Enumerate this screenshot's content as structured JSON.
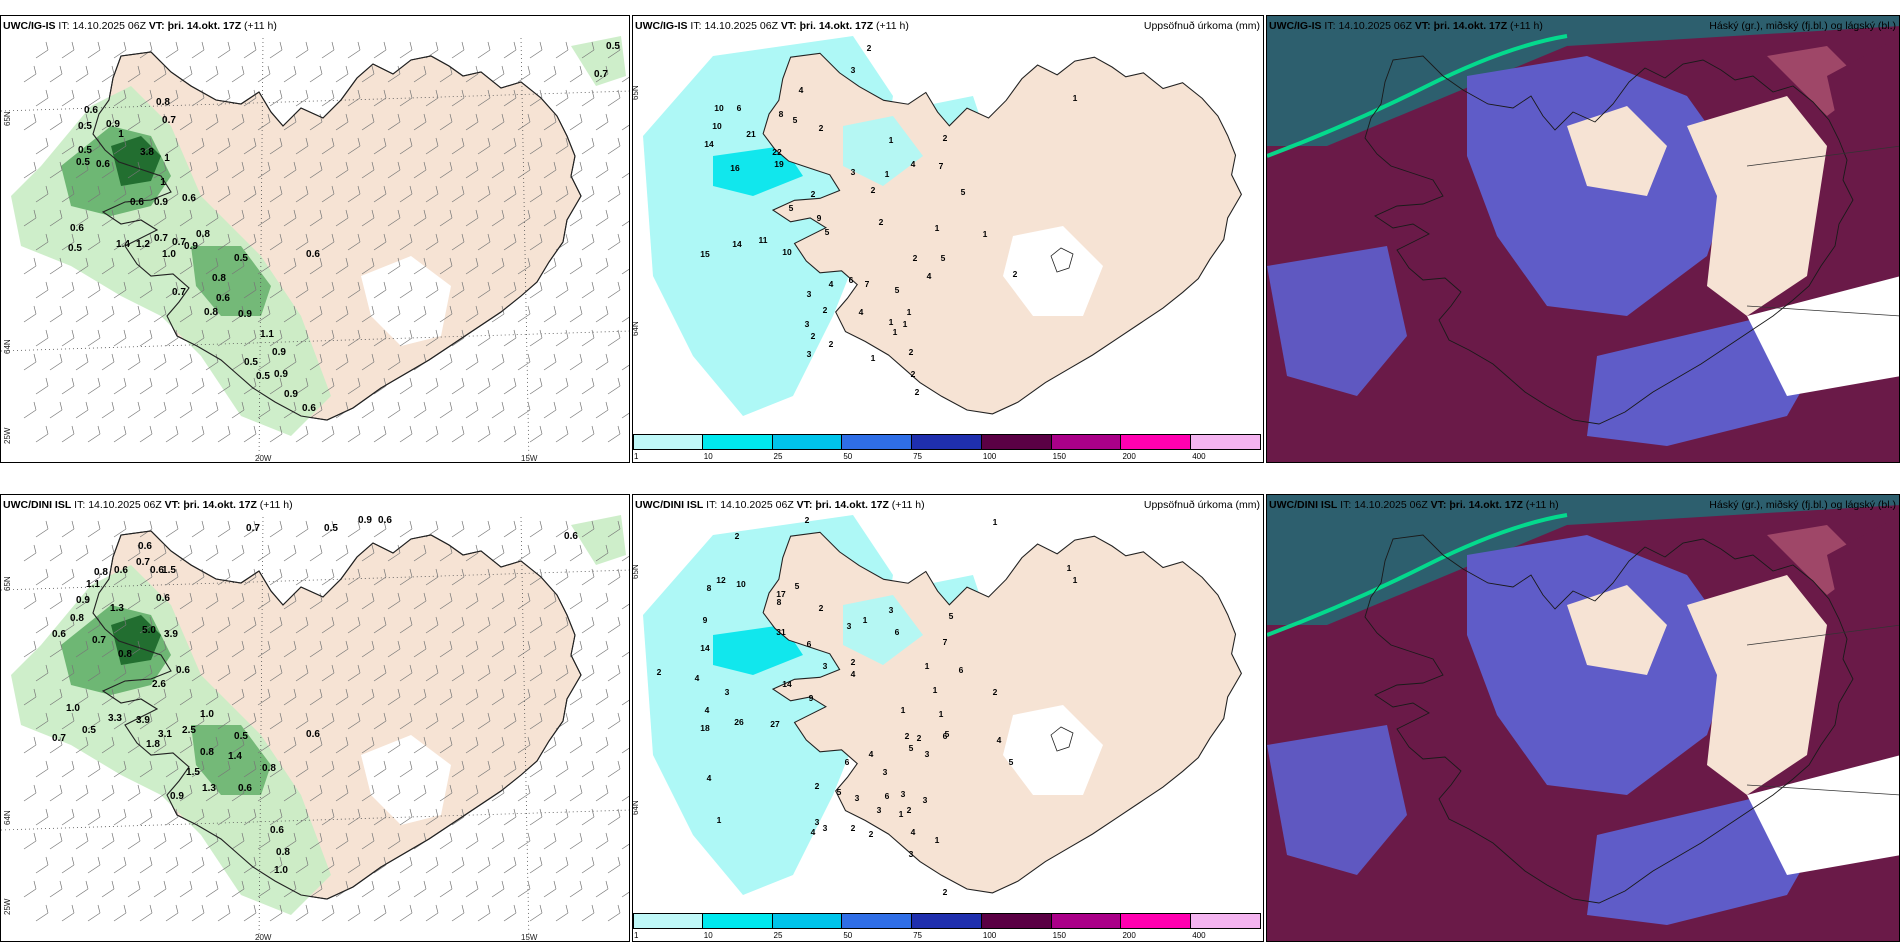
{
  "panels": [
    {
      "id": "p1",
      "model": "UWC/IG-IS",
      "it_label": "IT:",
      "it": "14.10.2025 06Z",
      "vt_label": "VT:",
      "vt": "þri. 14.okt. 17Z",
      "lead": "(+11 h)",
      "right_title": "",
      "lat_labels": [
        "65N",
        "64N",
        "25W"
      ],
      "lon_labels": [
        "20W",
        "15W"
      ],
      "values": [
        [
          "0.5",
          612,
          44
        ],
        [
          "0.7",
          600,
          72
        ],
        [
          "0.8",
          162,
          100
        ],
        [
          "0.6",
          90,
          108
        ],
        [
          "0.7",
          168,
          118
        ],
        [
          "0.5",
          84,
          124
        ],
        [
          "0.9",
          112,
          122
        ],
        [
          "1",
          120,
          132
        ],
        [
          "0.5",
          84,
          148
        ],
        [
          "3.8",
          146,
          150
        ],
        [
          "0.5",
          82,
          160
        ],
        [
          "0.6",
          102,
          162
        ],
        [
          "1",
          166,
          156
        ],
        [
          "1",
          162,
          180
        ],
        [
          "0.6",
          136,
          200
        ],
        [
          "0.9",
          160,
          200
        ],
        [
          "0.6",
          188,
          196
        ],
        [
          "0.6",
          76,
          226
        ],
        [
          "0.8",
          202,
          232
        ],
        [
          "0.7",
          160,
          236
        ],
        [
          "0.7",
          178,
          240
        ],
        [
          "0.9",
          190,
          244
        ],
        [
          "1.4",
          122,
          242
        ],
        [
          "1.2",
          142,
          242
        ],
        [
          "1.0",
          168,
          252
        ],
        [
          "0.5",
          74,
          246
        ],
        [
          "0.5",
          240,
          256
        ],
        [
          "0.6",
          312,
          252
        ],
        [
          "0.7",
          178,
          290
        ],
        [
          "0.8",
          218,
          276
        ],
        [
          "0.6",
          222,
          296
        ],
        [
          "0.8",
          210,
          310
        ],
        [
          "0.9",
          244,
          312
        ],
        [
          "1.1",
          266,
          332
        ],
        [
          "0.9",
          278,
          350
        ],
        [
          "0.5",
          250,
          360
        ],
        [
          "0.5",
          262,
          374
        ],
        [
          "0.9",
          280,
          372
        ],
        [
          "0.9",
          290,
          392
        ],
        [
          "0.6",
          308,
          406
        ]
      ]
    },
    {
      "id": "p2",
      "model": "UWC/IG-IS",
      "it_label": "IT:",
      "it": "14.10.2025 06Z",
      "vt_label": "VT:",
      "vt": "þri. 14.okt. 17Z",
      "lead": "(+11 h)",
      "right_title": "Uppsöfnuð úrkoma (mm)",
      "lat_labels": [
        "65N",
        "64N"
      ],
      "lon_labels": [],
      "values": [
        [
          "2",
          868,
          46
        ],
        [
          "3",
          852,
          68
        ],
        [
          "4",
          800,
          88
        ],
        [
          "1",
          1074,
          96
        ],
        [
          "10",
          718,
          106
        ],
        [
          "6",
          738,
          106
        ],
        [
          "8",
          780,
          112
        ],
        [
          "5",
          794,
          118
        ],
        [
          "2",
          820,
          126
        ],
        [
          "10",
          716,
          124
        ],
        [
          "21",
          750,
          132
        ],
        [
          "14",
          708,
          142
        ],
        [
          "22",
          776,
          150
        ],
        [
          "16",
          734,
          166
        ],
        [
          "19",
          778,
          162
        ],
        [
          "2",
          944,
          136
        ],
        [
          "1",
          890,
          138
        ],
        [
          "4",
          912,
          162
        ],
        [
          "7",
          940,
          164
        ],
        [
          "3",
          852,
          170
        ],
        [
          "1",
          886,
          172
        ],
        [
          "2",
          872,
          188
        ],
        [
          "5",
          962,
          190
        ],
        [
          "2",
          812,
          192
        ],
        [
          "5",
          790,
          206
        ],
        [
          "9",
          818,
          216
        ],
        [
          "5",
          826,
          230
        ],
        [
          "2",
          880,
          220
        ],
        [
          "1",
          936,
          226
        ],
        [
          "1",
          984,
          232
        ],
        [
          "14",
          736,
          242
        ],
        [
          "11",
          762,
          238
        ],
        [
          "10",
          786,
          250
        ],
        [
          "15",
          704,
          252
        ],
        [
          "2",
          914,
          256
        ],
        [
          "5",
          942,
          256
        ],
        [
          "4",
          928,
          274
        ],
        [
          "2",
          1014,
          272
        ],
        [
          "3",
          808,
          292
        ],
        [
          "4",
          830,
          282
        ],
        [
          "6",
          850,
          278
        ],
        [
          "7",
          866,
          282
        ],
        [
          "5",
          896,
          288
        ],
        [
          "2",
          824,
          308
        ],
        [
          "4",
          860,
          310
        ],
        [
          "1",
          890,
          320
        ],
        [
          "1",
          908,
          310
        ],
        [
          "3",
          806,
          322
        ],
        [
          "2",
          812,
          334
        ],
        [
          "1",
          894,
          330
        ],
        [
          "1",
          904,
          322
        ],
        [
          "2",
          830,
          342
        ],
        [
          "3",
          808,
          352
        ],
        [
          "1",
          872,
          356
        ],
        [
          "2",
          910,
          350
        ],
        [
          "2",
          912,
          372
        ],
        [
          "2",
          916,
          390
        ]
      ]
    },
    {
      "id": "p3",
      "model": "UWC/IG-IS",
      "it_label": "IT:",
      "it": "14.10.2025 06Z",
      "vt_label": "VT:",
      "vt": "þri. 14.okt. 17Z",
      "lead": "(+11 h)",
      "right_title": "Háský (gr.), miðský (fj.bl.) og lágský (bl.)",
      "lat_labels": [],
      "lon_labels": [],
      "values": []
    },
    {
      "id": "p4",
      "model": "UWC/DINI ISL",
      "it_label": "IT:",
      "it": "14.10.2025 06Z",
      "vt_label": "VT:",
      "vt": "þri. 14.okt. 17Z",
      "lead": "(+11 h)",
      "right_title": "",
      "lat_labels": [
        "65N",
        "64N",
        "25W"
      ],
      "lon_labels": [
        "20W",
        "15W"
      ],
      "values": [
        [
          "0.7",
          252,
          526
        ],
        [
          "0.5",
          330,
          526
        ],
        [
          "0.9",
          364,
          518
        ],
        [
          "0.6",
          384,
          518
        ],
        [
          "0.6",
          570,
          534
        ],
        [
          "0.6",
          144,
          544
        ],
        [
          "0.7",
          142,
          560
        ],
        [
          "0.8",
          100,
          570
        ],
        [
          "0.6",
          120,
          568
        ],
        [
          "0.6",
          156,
          568
        ],
        [
          "1.5",
          168,
          568
        ],
        [
          "1.1",
          92,
          582
        ],
        [
          "0.9",
          82,
          598
        ],
        [
          "1.3",
          116,
          606
        ],
        [
          "0.6",
          162,
          596
        ],
        [
          "0.8",
          76,
          616
        ],
        [
          "0.6",
          58,
          632
        ],
        [
          "5.0",
          148,
          628
        ],
        [
          "0.7",
          98,
          638
        ],
        [
          "3.9",
          170,
          632
        ],
        [
          "0.8",
          124,
          652
        ],
        [
          "0.6",
          182,
          668
        ],
        [
          "2.6",
          158,
          682
        ],
        [
          "1.0",
          72,
          706
        ],
        [
          "3.3",
          114,
          716
        ],
        [
          "3.9",
          142,
          718
        ],
        [
          "2.5",
          188,
          728
        ],
        [
          "1.0",
          206,
          712
        ],
        [
          "0.5",
          88,
          728
        ],
        [
          "0.7",
          58,
          736
        ],
        [
          "3.1",
          164,
          732
        ],
        [
          "1.8",
          152,
          742
        ],
        [
          "0.5",
          240,
          734
        ],
        [
          "0.6",
          312,
          732
        ],
        [
          "0.8",
          206,
          750
        ],
        [
          "1.4",
          234,
          754
        ],
        [
          "0.8",
          268,
          766
        ],
        [
          "1.5",
          192,
          770
        ],
        [
          "1.3",
          208,
          786
        ],
        [
          "0.6",
          244,
          786
        ],
        [
          "0.9",
          176,
          794
        ],
        [
          "0.6",
          276,
          828
        ],
        [
          "0.8",
          282,
          850
        ],
        [
          "1.0",
          280,
          868
        ]
      ]
    },
    {
      "id": "p5",
      "model": "UWC/DINI ISL",
      "it_label": "IT:",
      "it": "14.10.2025 06Z",
      "vt_label": "VT:",
      "vt": "þri. 14.okt. 17Z",
      "lead": "(+11 h)",
      "right_title": "Uppsöfnuð úrkoma (mm)",
      "lat_labels": [
        "65N",
        "64N"
      ],
      "lon_labels": [],
      "values": [
        [
          "2",
          806,
          518
        ],
        [
          "2",
          736,
          534
        ],
        [
          "1",
          994,
          520
        ],
        [
          "1",
          1068,
          566
        ],
        [
          "1",
          1074,
          578
        ],
        [
          "12",
          720,
          578
        ],
        [
          "10",
          740,
          582
        ],
        [
          "8",
          708,
          586
        ],
        [
          "17",
          780,
          592
        ],
        [
          "5",
          796,
          584
        ],
        [
          "8",
          778,
          600
        ],
        [
          "2",
          820,
          606
        ],
        [
          "3",
          890,
          608
        ],
        [
          "5",
          950,
          614
        ],
        [
          "9",
          704,
          618
        ],
        [
          "1",
          864,
          618
        ],
        [
          "6",
          896,
          630
        ],
        [
          "7",
          944,
          640
        ],
        [
          "14",
          704,
          646
        ],
        [
          "31",
          780,
          630
        ],
        [
          "3",
          848,
          624
        ],
        [
          "6",
          808,
          642
        ],
        [
          "3",
          824,
          664
        ],
        [
          "2",
          852,
          660
        ],
        [
          "6",
          960,
          668
        ],
        [
          "4",
          852,
          672
        ],
        [
          "2",
          658,
          670
        ],
        [
          "4",
          696,
          676
        ],
        [
          "1",
          926,
          664
        ],
        [
          "2",
          994,
          690
        ],
        [
          "14",
          786,
          682
        ],
        [
          "3",
          726,
          690
        ],
        [
          "9",
          810,
          696
        ],
        [
          "1",
          934,
          688
        ],
        [
          "4",
          706,
          708
        ],
        [
          "1",
          902,
          708
        ],
        [
          "18",
          704,
          726
        ],
        [
          "26",
          738,
          720
        ],
        [
          "27",
          774,
          722
        ],
        [
          "1",
          940,
          712
        ],
        [
          "5",
          946,
          732
        ],
        [
          "4",
          998,
          738
        ],
        [
          "4",
          708,
          776
        ],
        [
          "2",
          906,
          734
        ],
        [
          "2",
          918,
          736
        ],
        [
          "5",
          910,
          746
        ],
        [
          "6",
          944,
          734
        ],
        [
          "3",
          926,
          752
        ],
        [
          "5",
          1010,
          760
        ],
        [
          "4",
          870,
          752
        ],
        [
          "3",
          884,
          770
        ],
        [
          "6",
          846,
          760
        ],
        [
          "6",
          886,
          794
        ],
        [
          "3",
          902,
          792
        ],
        [
          "3",
          924,
          798
        ],
        [
          "2",
          816,
          784
        ],
        [
          "5",
          838,
          790
        ],
        [
          "3",
          856,
          796
        ],
        [
          "3",
          878,
          808
        ],
        [
          "2",
          908,
          808
        ],
        [
          "3",
          816,
          820
        ],
        [
          "1",
          900,
          812
        ],
        [
          "1",
          718,
          818
        ],
        [
          "4",
          812,
          830
        ],
        [
          "3",
          824,
          826
        ],
        [
          "2",
          852,
          826
        ],
        [
          "2",
          870,
          832
        ],
        [
          "4",
          912,
          830
        ],
        [
          "1",
          936,
          838
        ],
        [
          "3",
          910,
          852
        ],
        [
          "2",
          944,
          890
        ]
      ]
    },
    {
      "id": "p6",
      "model": "UWC/DINI ISL",
      "it_label": "IT:",
      "it": "14.10.2025 06Z",
      "vt_label": "VT:",
      "vt": "þri. 14.okt. 17Z",
      "lead": "(+11 h)",
      "right_title": "Háský (gr.), miðský (fj.bl.) og lágský (bl.)",
      "lat_labels": [],
      "lon_labels": [],
      "values": []
    }
  ],
  "colorbar": {
    "labels": [
      "1",
      "10",
      "25",
      "50",
      "75",
      "100",
      "150",
      "200",
      "400"
    ],
    "colors": [
      "#bff8f8",
      "#00e8ee",
      "#00c4ea",
      "#2f6ee6",
      "#1f2fae",
      "#5a0044",
      "#aa0088",
      "#ff00b0",
      "#f4b4f0"
    ]
  },
  "colors": {
    "land": "#f6e3d4",
    "precip_light": "#c9ecc4",
    "precip_mid": "#64b06a",
    "precip_dark": "#1e6a2c",
    "cyan_light": "#aef8f6",
    "cyan_mid": "#00e4ec",
    "cloud_high": "#6a1a48",
    "cloud_mid": "#a24a6a",
    "cloud_low": "#5f5cc8",
    "sea_dark": "#2d5f6e",
    "front": "#00e890"
  }
}
